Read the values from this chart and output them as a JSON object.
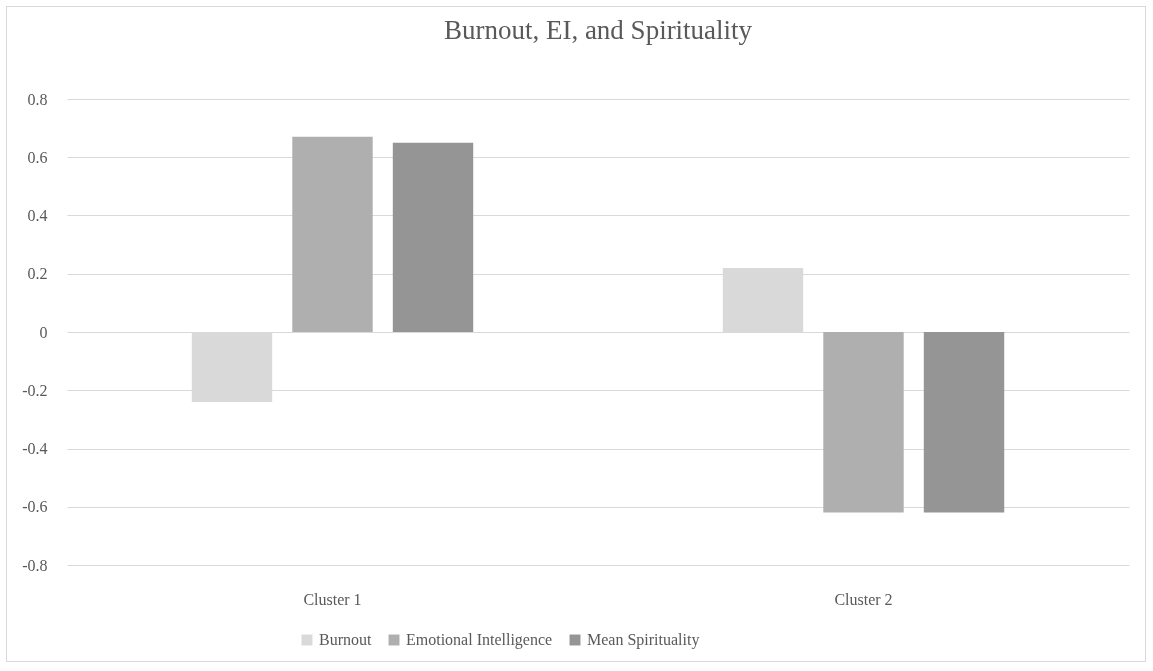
{
  "chart_data": {
    "type": "bar",
    "title": "Burnout, EI, and Spirituality",
    "categories": [
      "Cluster 1",
      "Cluster 2"
    ],
    "series": [
      {
        "name": "Burnout",
        "color": "#d9d9d9",
        "values": [
          -0.24,
          0.22
        ]
      },
      {
        "name": "Emotional Intelligence",
        "color": "#afafaf",
        "values": [
          0.67,
          -0.62
        ]
      },
      {
        "name": "Mean Spirituality",
        "color": "#959595",
        "values": [
          0.65,
          -0.62
        ]
      }
    ],
    "ylim": [
      -0.8,
      0.8
    ],
    "yticks": [
      -0.8,
      -0.6,
      -0.4,
      -0.2,
      0,
      0.2,
      0.4,
      0.6,
      0.8
    ],
    "grid": "y",
    "legend": "bottom"
  }
}
